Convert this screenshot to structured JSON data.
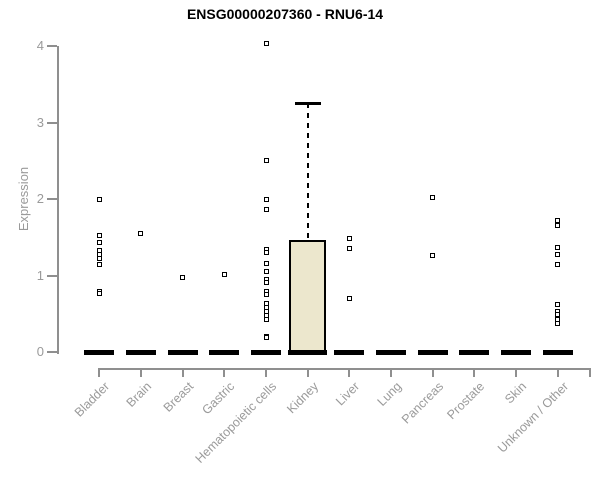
{
  "chart_data": {
    "type": "boxplot",
    "title": "ENSG00000207360 - RNU6-14",
    "ylabel": "Expression",
    "ylim": [
      0,
      4
    ],
    "yticks": [
      0,
      1,
      2,
      3,
      4
    ],
    "grid": false,
    "categories": [
      "Bladder",
      "Brain",
      "Breast",
      "Gastric",
      "Hematopoietic cells",
      "Kidney",
      "Liver",
      "Lung",
      "Pancreas",
      "Prostate",
      "Skin",
      "Unknown / Other"
    ],
    "boxes": [
      {
        "category": "Bladder",
        "median": 0,
        "q1": 0,
        "q3": 0,
        "whisker_low": 0,
        "whisker_high": 0,
        "outliers": [
          2.0,
          1.52,
          1.43,
          1.33,
          1.28,
          1.22,
          1.15,
          0.8,
          0.77
        ]
      },
      {
        "category": "Brain",
        "median": 0,
        "q1": 0,
        "q3": 0,
        "whisker_low": 0,
        "whisker_high": 0,
        "outliers": [
          1.55
        ]
      },
      {
        "category": "Breast",
        "median": 0,
        "q1": 0,
        "q3": 0,
        "whisker_low": 0,
        "whisker_high": 0,
        "outliers": [
          0.98
        ]
      },
      {
        "category": "Gastric",
        "median": 0,
        "q1": 0,
        "q3": 0,
        "whisker_low": 0,
        "whisker_high": 0,
        "outliers": [
          1.02
        ]
      },
      {
        "category": "Hematopoietic cells",
        "median": 0,
        "q1": 0,
        "q3": 0,
        "whisker_low": 0,
        "whisker_high": 0,
        "outliers": [
          4.03,
          2.5,
          2.0,
          1.86,
          1.34,
          1.3,
          1.16,
          1.05,
          0.95,
          0.91,
          0.79,
          0.76,
          0.64,
          0.58,
          0.53,
          0.48,
          0.43,
          0.21,
          0.19
        ]
      },
      {
        "category": "Kidney",
        "median": 0,
        "q1": 0,
        "q3": 1.46,
        "whisker_low": 0,
        "whisker_high": 3.25,
        "outliers": []
      },
      {
        "category": "Liver",
        "median": 0,
        "q1": 0,
        "q3": 0,
        "whisker_low": 0,
        "whisker_high": 0,
        "outliers": [
          1.48,
          1.36,
          0.7
        ]
      },
      {
        "category": "Lung",
        "median": 0,
        "q1": 0,
        "q3": 0,
        "whisker_low": 0,
        "whisker_high": 0,
        "outliers": []
      },
      {
        "category": "Pancreas",
        "median": 0,
        "q1": 0,
        "q3": 0,
        "whisker_low": 0,
        "whisker_high": 0,
        "outliers": [
          2.02,
          1.26
        ]
      },
      {
        "category": "Prostate",
        "median": 0,
        "q1": 0,
        "q3": 0,
        "whisker_low": 0,
        "whisker_high": 0,
        "outliers": []
      },
      {
        "category": "Skin",
        "median": 0,
        "q1": 0,
        "q3": 0,
        "whisker_low": 0,
        "whisker_high": 0,
        "outliers": []
      },
      {
        "category": "Unknown / Other",
        "median": 0,
        "q1": 0,
        "q3": 0,
        "whisker_low": 0,
        "whisker_high": 0,
        "outliers": [
          1.72,
          1.66,
          1.37,
          1.28,
          1.14,
          0.62,
          0.53,
          0.49,
          0.43,
          0.38
        ]
      }
    ],
    "style": {
      "box_fill": "#ece7cd",
      "box_border": "#000000",
      "axis_color": "#8f8f8f",
      "tick_label_color": "#9a9a9a",
      "point_color": "#000000",
      "title_color": "#000000",
      "background": "#ffffff"
    }
  }
}
